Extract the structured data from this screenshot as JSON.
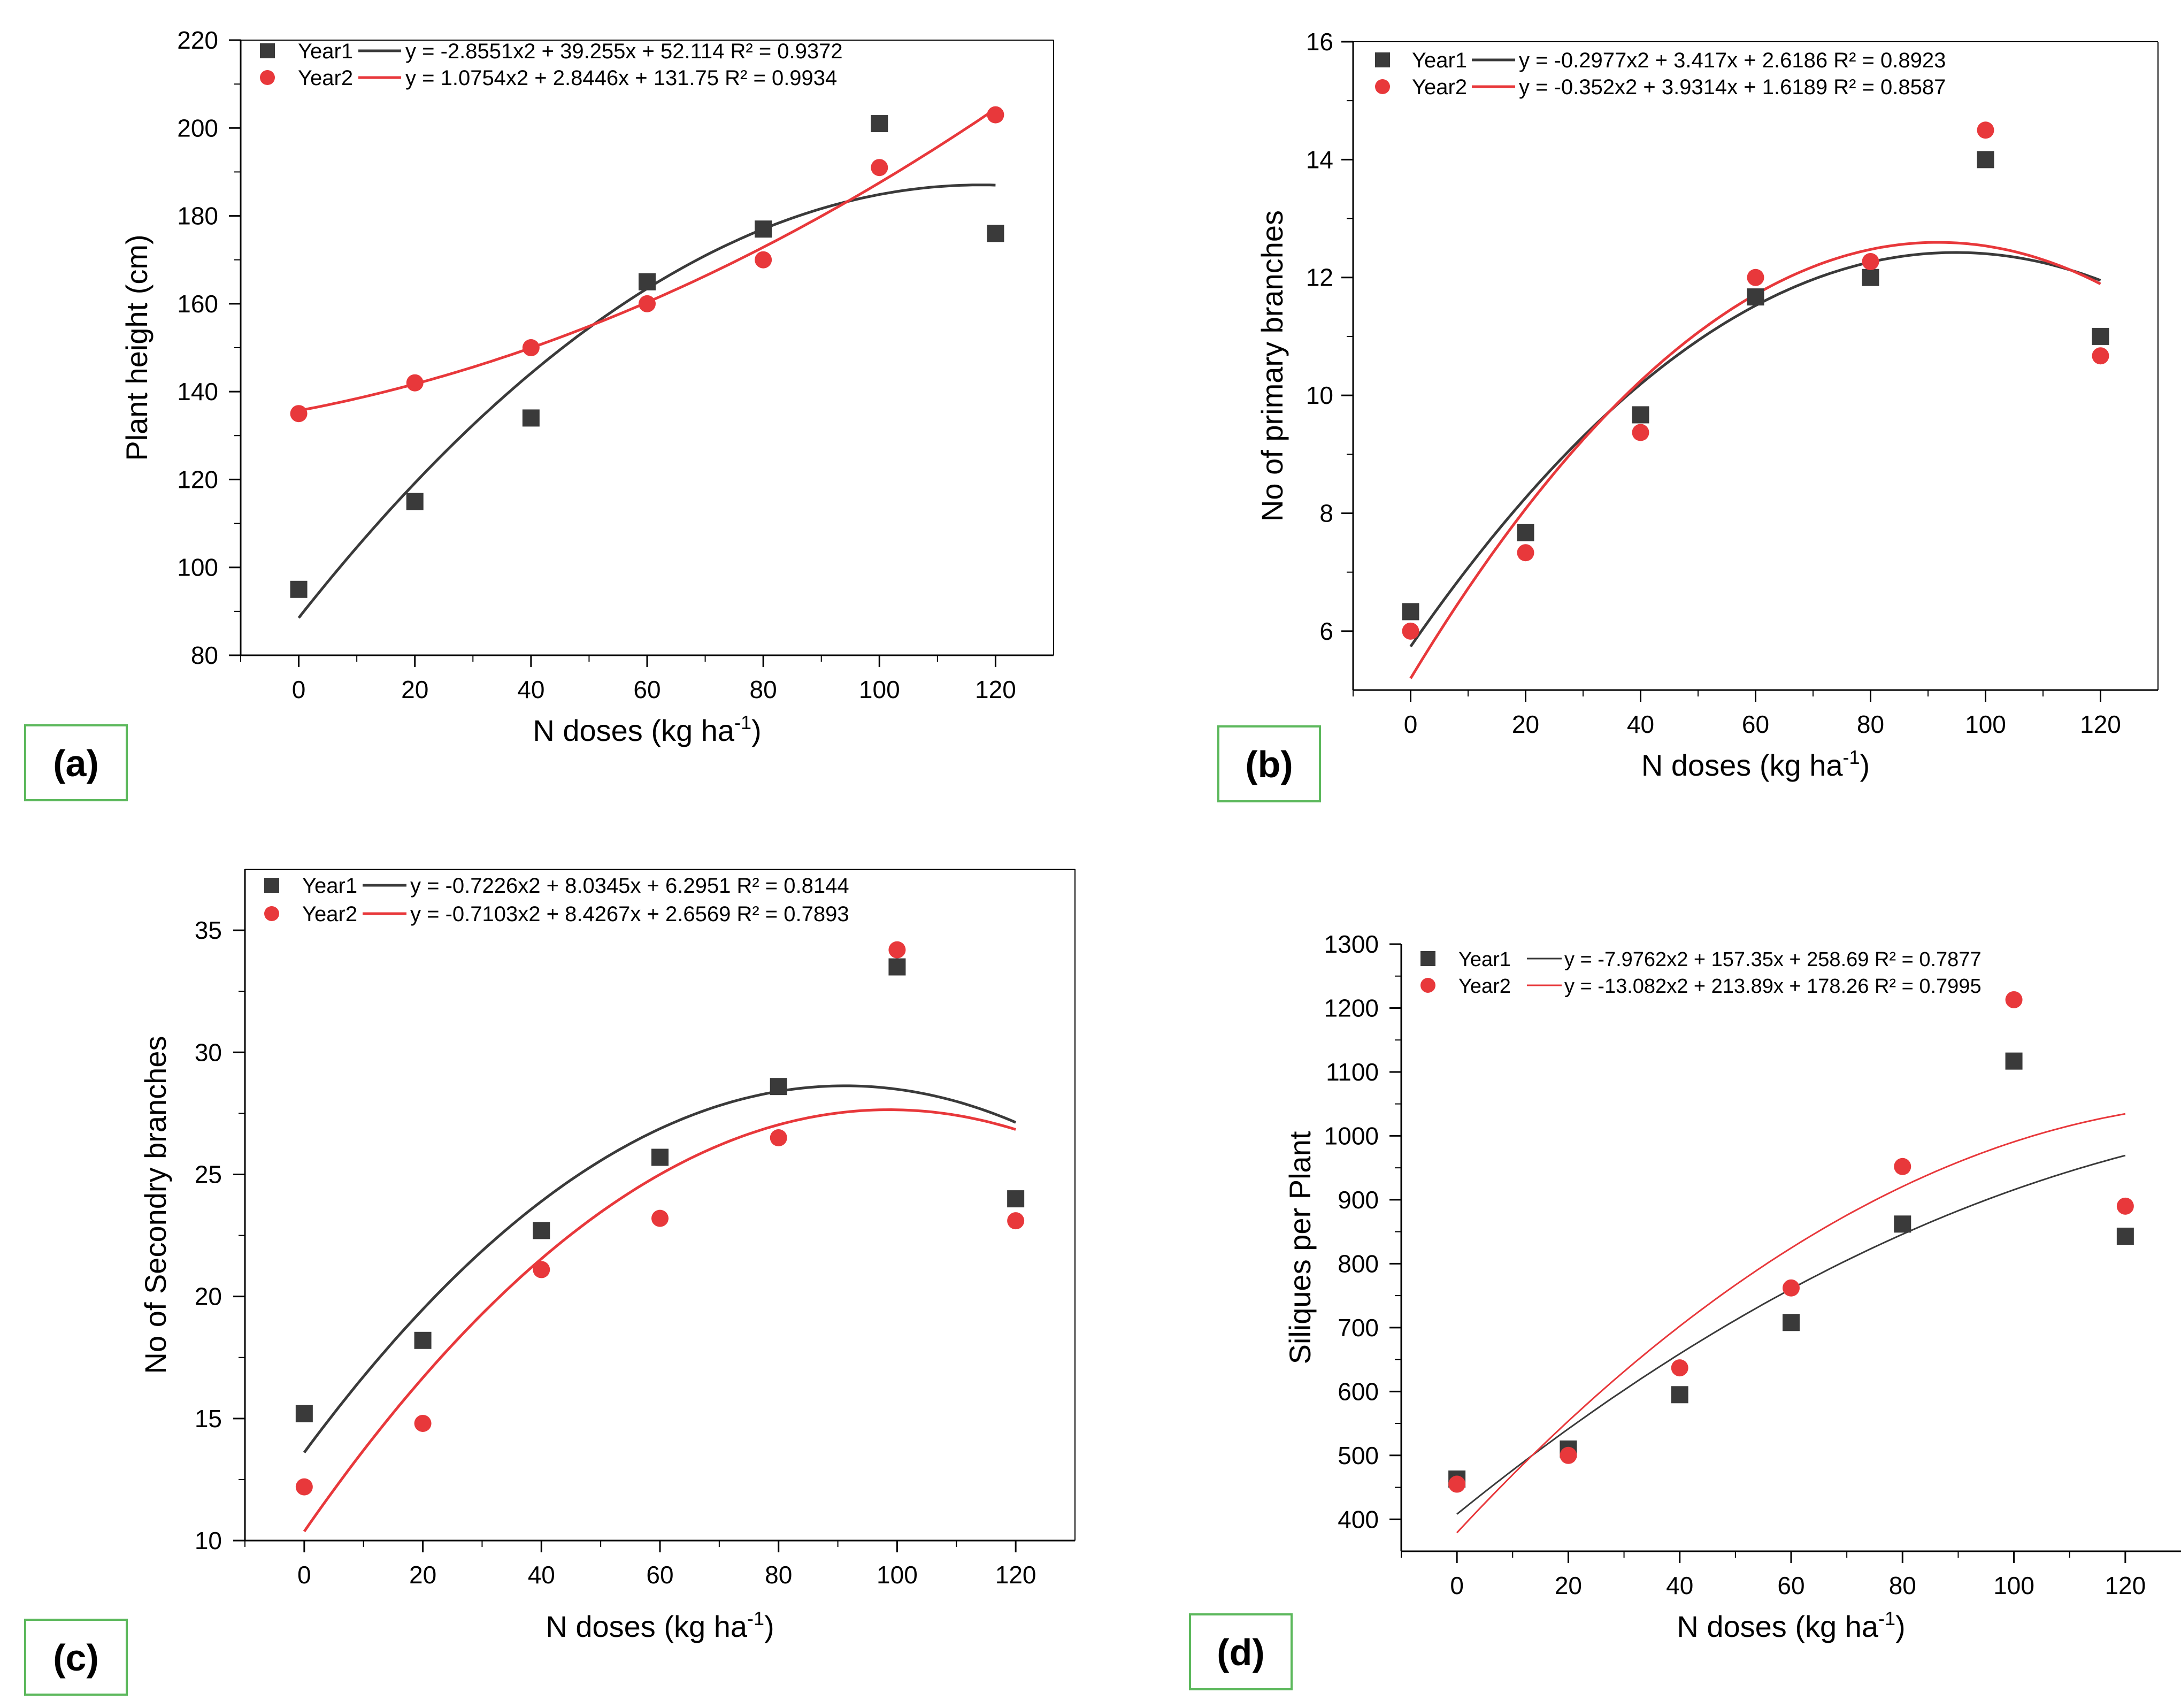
{
  "chart_data": [
    {
      "type": "scatter",
      "panel_label": "(a)",
      "title": "",
      "xlabel_main": "N doses (kg ha",
      "xlabel_sup": "-1",
      "xlabel_close": ")",
      "ylabel": "Plant height (cm)",
      "xlim": [
        -10,
        130
      ],
      "ylim": [
        80,
        220
      ],
      "xticks": [
        0,
        20,
        40,
        60,
        80,
        100,
        120
      ],
      "xtick_labels": [
        "0",
        "20",
        "40",
        "60",
        "80",
        "100",
        "120"
      ],
      "yticks": [
        80,
        100,
        120,
        140,
        160,
        180,
        200,
        220
      ],
      "ytick_labels": [
        "80",
        "100",
        "120",
        "140",
        "160",
        "180",
        "200",
        "220"
      ],
      "grid": false,
      "legend": "top-left",
      "series": [
        {
          "name": "Year1",
          "marker": "square",
          "color": "#3a3a3a",
          "x": [
            0,
            20,
            40,
            60,
            80,
            100,
            120
          ],
          "y": [
            95,
            115,
            134,
            165,
            177,
            201,
            176
          ],
          "equation": "y = -2.8551x2 + 39.255x + 52.114 R² = 0.9372",
          "fit_coef": [
            -2.8551,
            39.255,
            52.114
          ]
        },
        {
          "name": "Year2",
          "marker": "circle",
          "color": "#e8383b",
          "x": [
            0,
            20,
            40,
            60,
            80,
            100,
            120
          ],
          "y": [
            135,
            142,
            150,
            160,
            170,
            191,
            203
          ],
          "equation": "y = 1.0754x2 + 2.8446x + 131.75  R² = 0.9934",
          "fit_coef": [
            1.0754,
            2.8446,
            131.75
          ]
        }
      ]
    },
    {
      "type": "scatter",
      "panel_label": "(b)",
      "title": "",
      "xlabel_main": "N doses (kg ha",
      "xlabel_sup": "-1",
      "xlabel_close": ")",
      "ylabel": "No of primary branches",
      "xlim": [
        -10,
        130
      ],
      "ylim": [
        5,
        16
      ],
      "xticks": [
        0,
        20,
        40,
        60,
        80,
        100,
        120
      ],
      "xtick_labels": [
        "0",
        "20",
        "40",
        "60",
        "80",
        "100",
        "120"
      ],
      "yticks": [
        6,
        8,
        10,
        12,
        14,
        16
      ],
      "ytick_labels": [
        "6",
        "8",
        "10",
        "12",
        "14",
        "16"
      ],
      "grid": false,
      "legend": "top-left",
      "series": [
        {
          "name": "Year1",
          "marker": "square",
          "color": "#3a3a3a",
          "x": [
            0,
            20,
            40,
            60,
            80,
            100,
            120
          ],
          "y": [
            6.33,
            7.67,
            9.67,
            11.67,
            12.0,
            14.0,
            11.0
          ],
          "equation": "y = -0.2977x2 + 3.417x + 2.6186 R² = 0.8923",
          "fit_coef": [
            -0.2977,
            3.417,
            2.6186
          ]
        },
        {
          "name": "Year2",
          "marker": "circle",
          "color": "#e8383b",
          "x": [
            0,
            20,
            40,
            60,
            80,
            100,
            120
          ],
          "y": [
            6.0,
            7.33,
            9.37,
            12.0,
            12.27,
            14.5,
            10.67
          ],
          "equation": "y = -0.352x2 + 3.9314x + 1.6189 R² = 0.8587",
          "fit_coef": [
            -0.352,
            3.9314,
            1.6189
          ]
        }
      ]
    },
    {
      "type": "scatter",
      "panel_label": "(c)",
      "title": "",
      "xlabel_main": "N doses (kg ha",
      "xlabel_sup": "-1",
      "xlabel_close": ")",
      "ylabel": "No of Secondry branches",
      "xlim": [
        -10,
        130
      ],
      "ylim": [
        10,
        37.5
      ],
      "xticks": [
        0,
        20,
        40,
        60,
        80,
        100,
        120
      ],
      "xtick_labels": [
        "0",
        "20",
        "40",
        "60",
        "80",
        "100",
        "120"
      ],
      "yticks": [
        10,
        15,
        20,
        25,
        30,
        35
      ],
      "ytick_labels": [
        "10",
        "15",
        "20",
        "25",
        "30",
        "35"
      ],
      "grid": false,
      "legend": "top-left",
      "series": [
        {
          "name": "Year1",
          "marker": "square",
          "color": "#3a3a3a",
          "x": [
            0,
            20,
            40,
            60,
            80,
            100,
            120
          ],
          "y": [
            15.2,
            18.2,
            22.7,
            25.7,
            28.6,
            33.5,
            24.0
          ],
          "equation": "y = -0.7226x2 + 8.0345x + 6.2951 R² = 0.8144",
          "fit_coef": [
            -0.7226,
            8.0345,
            6.2951
          ]
        },
        {
          "name": "Year2",
          "marker": "circle",
          "color": "#e8383b",
          "x": [
            0,
            20,
            40,
            60,
            80,
            100,
            120
          ],
          "y": [
            12.2,
            14.8,
            21.1,
            23.2,
            26.5,
            34.2,
            23.1
          ],
          "equation": "y = -0.7103x2 + 8.4267x + 2.6569 R² = 0.7893",
          "fit_coef": [
            -0.7103,
            8.4267,
            2.6569
          ]
        }
      ]
    },
    {
      "type": "scatter",
      "panel_label": "(d)",
      "title": "",
      "xlabel_main": "N doses (kg ha",
      "xlabel_sup": "-1",
      "xlabel_close": ")",
      "ylabel": "Siliques per Plant",
      "xlim": [
        -10,
        130
      ],
      "ylim": [
        350,
        1300
      ],
      "xticks": [
        0,
        20,
        40,
        60,
        80,
        100,
        120
      ],
      "xtick_labels": [
        "0",
        "20",
        "40",
        "60",
        "80",
        "100",
        "120"
      ],
      "yticks": [
        400,
        500,
        600,
        700,
        800,
        900,
        1000,
        1100,
        1200,
        1300
      ],
      "ytick_labels": [
        "400",
        "500",
        "600",
        "700",
        "800",
        "900",
        "1000",
        "1100",
        "1200",
        "1300"
      ],
      "grid": false,
      "legend": "top-left",
      "series": [
        {
          "name": "Year1",
          "marker": "square",
          "color": "#3a3a3a",
          "x": [
            0,
            20,
            40,
            60,
            80,
            100,
            120
          ],
          "y": [
            463,
            510,
            595,
            708,
            862,
            1117,
            843
          ],
          "equation": "y = -7.9762x2 + 157.35x + 258.69 R² = 0.7877",
          "fit_coef": [
            -7.9762,
            157.35,
            258.69
          ]
        },
        {
          "name": "Year2",
          "marker": "circle",
          "color": "#e8383b",
          "x": [
            0,
            20,
            40,
            60,
            80,
            100,
            120
          ],
          "y": [
            455,
            500,
            637,
            762,
            952,
            1213,
            890
          ],
          "equation": "y = -13.082x2 + 213.89x + 178.26 R² = 0.7995",
          "fit_coef": [
            -13.082,
            213.89,
            178.26
          ]
        }
      ]
    }
  ]
}
